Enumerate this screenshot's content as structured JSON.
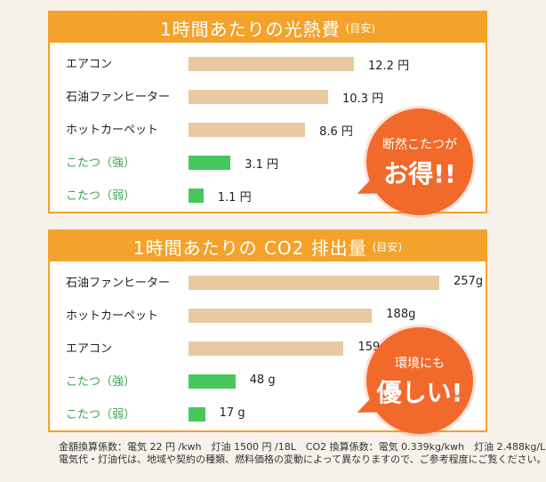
{
  "chart_data": [
    {
      "type": "bar",
      "title": "1時間あたりの光熱費",
      "subtitle": "(目安)",
      "categories": [
        "エアコン",
        "石油ファンヒーター",
        "ホットカーペット",
        "こたつ（強）",
        "こたつ（弱）"
      ],
      "values": [
        12.2,
        10.3,
        8.6,
        3.1,
        1.1
      ],
      "value_labels": [
        "12.2 円",
        "10.3 円",
        "8.6 円",
        "3.1 円",
        "1.1 円"
      ],
      "highlight_colors": [
        "#e9c9a1",
        "#e9c9a1",
        "#e9c9a1",
        "#48c65b",
        "#48c65b"
      ],
      "callout": {
        "small": "断然こたつが",
        "big": "お得!!"
      }
    },
    {
      "type": "bar",
      "title": "1時間あたりの CO2 排出量",
      "subtitle": "(目安)",
      "categories": [
        "石油ファンヒーター",
        "ホットカーペット",
        "エアコン",
        "こたつ（強）",
        "こたつ（弱）"
      ],
      "values": [
        257,
        188,
        159,
        48,
        17
      ],
      "value_labels": [
        "257g",
        "188g",
        "159g",
        "48 g",
        "17 g"
      ],
      "highlight_colors": [
        "#e9c9a1",
        "#e9c9a1",
        "#e9c9a1",
        "#48c65b",
        "#48c65b"
      ],
      "callout": {
        "small": "環境にも",
        "big": "優しい!"
      }
    }
  ],
  "footnote": {
    "line1": "金額換算係数：電気 22 円 /kwh　灯油 1500 円 /18L　CO2 換算係数：電気 0.339kg/kwh　灯油 2.488kg/L",
    "line2": "電気代・灯油代は、地域や契約の種類、燃料価格の変動によって異なりますので、ご参考程度にご覧ください。"
  },
  "colors": {
    "accent": "#f3a22b",
    "callout": "#f16a2c",
    "bar": "#e9c9a1",
    "bar_highlight": "#48c65b",
    "label_highlight": "#3aa64a"
  }
}
